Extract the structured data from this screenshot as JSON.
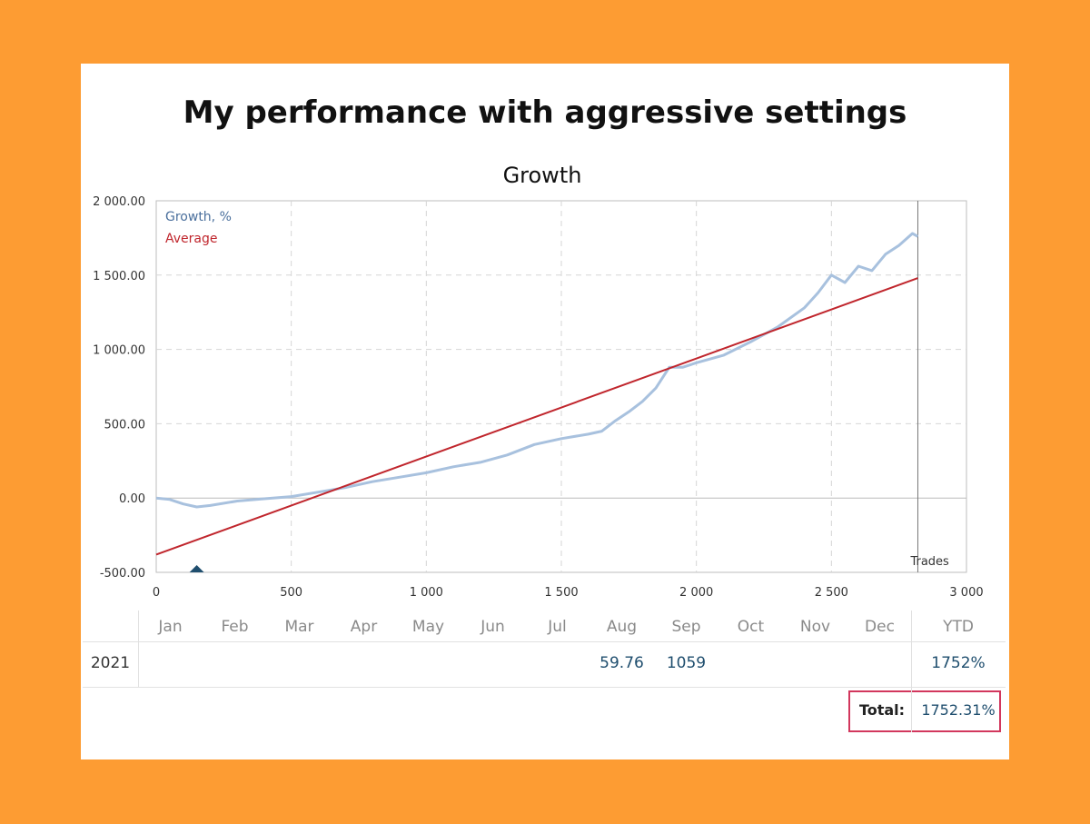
{
  "page": {
    "title": "My performance with aggressive settings"
  },
  "colors": {
    "background": "#FD9C33",
    "growth": "#A8C1DE",
    "average": "#C0262D",
    "highlight": "#D2375D"
  },
  "chart_data": {
    "type": "line",
    "title": "Growth",
    "xlabel": "Trades",
    "ylabel": "",
    "xlim": [
      0,
      3000
    ],
    "ylim": [
      -500,
      2000
    ],
    "x_ticks": [
      0,
      500,
      1000,
      1500,
      2000,
      2500,
      3000
    ],
    "x_tick_labels": [
      "0",
      "500",
      "1 000",
      "1 500",
      "2 000",
      "2 500",
      "3 000"
    ],
    "y_ticks": [
      -500,
      0,
      500,
      1000,
      1500,
      2000
    ],
    "y_tick_labels": [
      "-500.00",
      "0.00",
      "500.00",
      "1 000.00",
      "1 500.00",
      "2 000.00"
    ],
    "grid": true,
    "legend_position": "top-left",
    "series": [
      {
        "name": "Growth, %",
        "color": "#A8C1DE",
        "points": [
          [
            0,
            0
          ],
          [
            50,
            -10
          ],
          [
            100,
            -40
          ],
          [
            150,
            -60
          ],
          [
            200,
            -50
          ],
          [
            300,
            -20
          ],
          [
            400,
            -5
          ],
          [
            500,
            10
          ],
          [
            600,
            40
          ],
          [
            700,
            70
          ],
          [
            800,
            110
          ],
          [
            900,
            140
          ],
          [
            1000,
            170
          ],
          [
            1100,
            210
          ],
          [
            1200,
            240
          ],
          [
            1300,
            290
          ],
          [
            1400,
            360
          ],
          [
            1500,
            400
          ],
          [
            1600,
            430
          ],
          [
            1650,
            450
          ],
          [
            1700,
            520
          ],
          [
            1750,
            580
          ],
          [
            1800,
            650
          ],
          [
            1850,
            740
          ],
          [
            1900,
            880
          ],
          [
            1950,
            880
          ],
          [
            2000,
            910
          ],
          [
            2100,
            960
          ],
          [
            2200,
            1050
          ],
          [
            2300,
            1150
          ],
          [
            2400,
            1280
          ],
          [
            2450,
            1380
          ],
          [
            2500,
            1500
          ],
          [
            2550,
            1450
          ],
          [
            2600,
            1560
          ],
          [
            2650,
            1530
          ],
          [
            2700,
            1640
          ],
          [
            2750,
            1700
          ],
          [
            2800,
            1780
          ],
          [
            2820,
            1760
          ]
        ]
      },
      {
        "name": "Average",
        "color": "#C0262D",
        "points": [
          [
            0,
            -380
          ],
          [
            2820,
            1480
          ]
        ]
      }
    ],
    "markers": [
      {
        "x": 150,
        "y": -500,
        "shape": "triangle-up",
        "color": "#1f4e6e"
      }
    ]
  },
  "table": {
    "months": [
      "Jan",
      "Feb",
      "Mar",
      "Apr",
      "May",
      "Jun",
      "Jul",
      "Aug",
      "Sep",
      "Oct",
      "Nov",
      "Dec"
    ],
    "ytd_label": "YTD",
    "rows": [
      {
        "year": "2021",
        "values": [
          "",
          "",
          "",
          "",
          "",
          "",
          "",
          "59.76",
          "1059",
          "",
          "",
          ""
        ],
        "ytd": "1752%"
      }
    ],
    "total_label": "Total:",
    "total_value": "1752.31%"
  }
}
